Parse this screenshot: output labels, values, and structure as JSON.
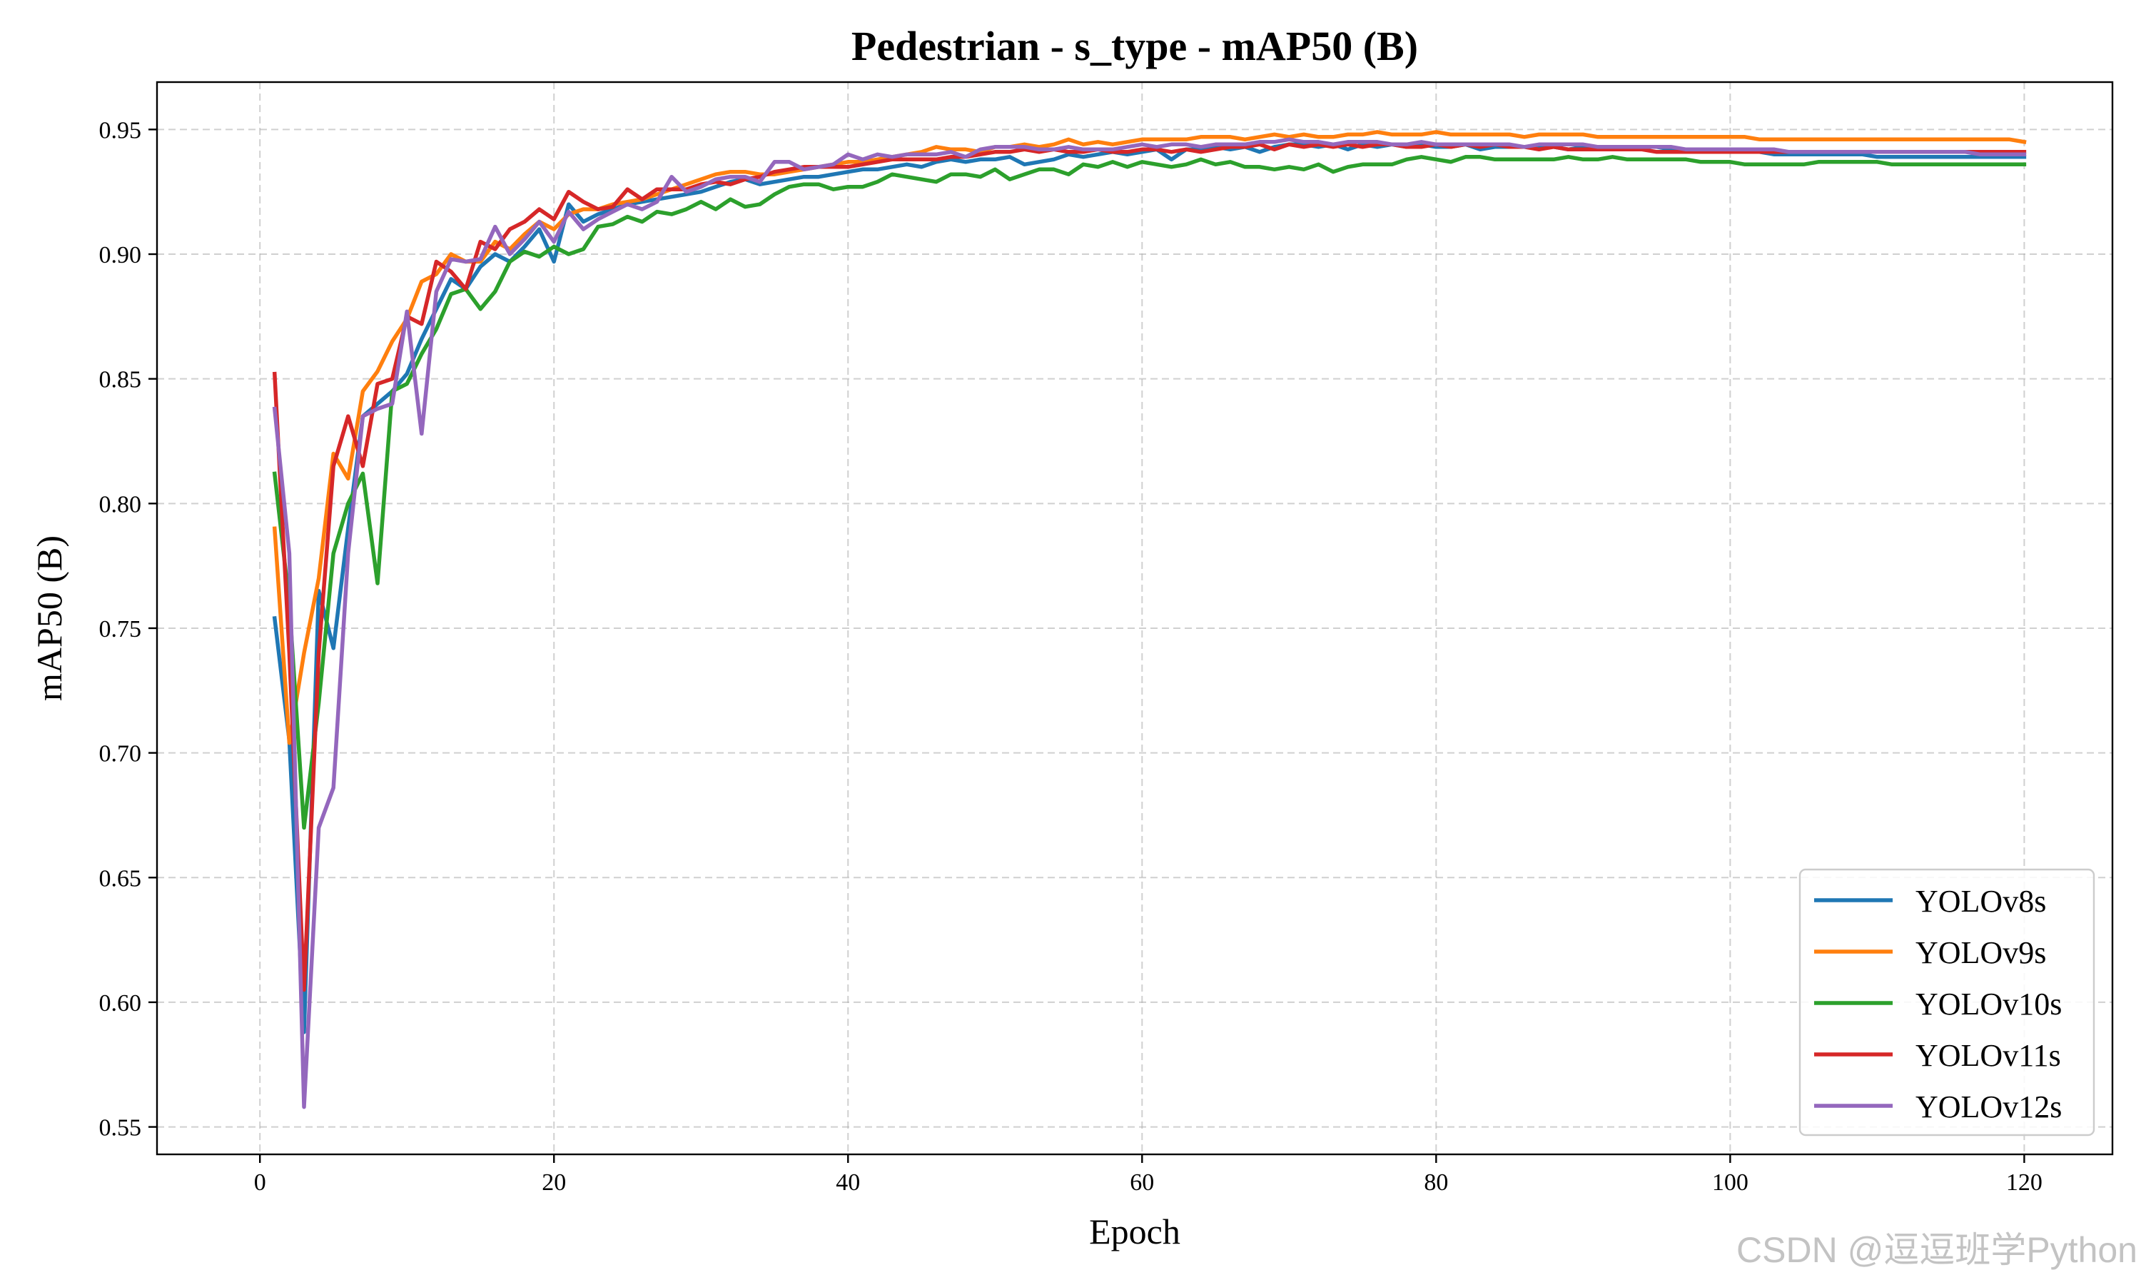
{
  "chart_data": {
    "type": "line",
    "title": "Pedestrian - s_type - mAP50 (B)",
    "xlabel": "Epoch",
    "ylabel": "mAP50 (B)",
    "xlim": [
      -7.0,
      126.0
    ],
    "ylim": [
      0.539,
      0.969
    ],
    "xticks": [
      0,
      20,
      40,
      60,
      80,
      100,
      120
    ],
    "yticks": [
      0.55,
      0.6,
      0.65,
      0.7,
      0.75,
      0.8,
      0.85,
      0.9,
      0.95
    ],
    "ytick_labels": [
      "0.55",
      "0.60",
      "0.65",
      "0.70",
      "0.75",
      "0.80",
      "0.85",
      "0.90",
      "0.95"
    ],
    "grid": true,
    "grid_style": "dashed",
    "legend_position": "lower-right",
    "x_start": 1,
    "series": [
      {
        "name": "YOLOv8s",
        "color": "#1f77b4",
        "values": [
          0.754,
          0.705,
          0.588,
          0.765,
          0.742,
          0.79,
          0.835,
          0.84,
          0.845,
          0.852,
          0.866,
          0.878,
          0.89,
          0.886,
          0.895,
          0.9,
          0.897,
          0.903,
          0.91,
          0.897,
          0.92,
          0.913,
          0.916,
          0.918,
          0.92,
          0.921,
          0.922,
          0.923,
          0.924,
          0.925,
          0.927,
          0.929,
          0.93,
          0.928,
          0.929,
          0.93,
          0.931,
          0.931,
          0.932,
          0.933,
          0.934,
          0.934,
          0.935,
          0.936,
          0.935,
          0.937,
          0.938,
          0.937,
          0.938,
          0.938,
          0.939,
          0.936,
          0.937,
          0.938,
          0.94,
          0.939,
          0.94,
          0.941,
          0.94,
          0.941,
          0.942,
          0.938,
          0.942,
          0.942,
          0.943,
          0.942,
          0.943,
          0.941,
          0.943,
          0.944,
          0.944,
          0.943,
          0.944,
          0.942,
          0.944,
          0.943,
          0.944,
          0.943,
          0.944,
          0.943,
          0.943,
          0.944,
          0.942,
          0.943,
          0.943,
          0.943,
          0.943,
          0.943,
          0.942,
          0.943,
          0.943,
          0.942,
          0.942,
          0.943,
          0.943,
          0.942,
          0.942,
          0.942,
          0.941,
          0.941,
          0.941,
          0.941,
          0.94,
          0.94,
          0.94,
          0.94,
          0.94,
          0.94,
          0.94,
          0.939,
          0.939,
          0.939,
          0.939,
          0.939,
          0.939,
          0.939,
          0.939,
          0.939,
          0.939,
          0.939
        ]
      },
      {
        "name": "YOLOv9s",
        "color": "#ff7f0e",
        "values": [
          0.79,
          0.704,
          0.74,
          0.77,
          0.82,
          0.81,
          0.845,
          0.853,
          0.865,
          0.874,
          0.889,
          0.892,
          0.9,
          0.897,
          0.897,
          0.905,
          0.902,
          0.908,
          0.913,
          0.91,
          0.916,
          0.918,
          0.918,
          0.92,
          0.921,
          0.922,
          0.924,
          0.926,
          0.928,
          0.93,
          0.932,
          0.933,
          0.933,
          0.932,
          0.932,
          0.933,
          0.934,
          0.935,
          0.936,
          0.937,
          0.937,
          0.938,
          0.939,
          0.94,
          0.941,
          0.943,
          0.942,
          0.942,
          0.941,
          0.943,
          0.943,
          0.944,
          0.943,
          0.944,
          0.946,
          0.944,
          0.945,
          0.944,
          0.945,
          0.946,
          0.946,
          0.946,
          0.946,
          0.947,
          0.947,
          0.947,
          0.946,
          0.947,
          0.948,
          0.947,
          0.948,
          0.947,
          0.947,
          0.948,
          0.948,
          0.949,
          0.948,
          0.948,
          0.948,
          0.949,
          0.948,
          0.948,
          0.948,
          0.948,
          0.948,
          0.947,
          0.948,
          0.948,
          0.948,
          0.948,
          0.947,
          0.947,
          0.947,
          0.947,
          0.947,
          0.947,
          0.947,
          0.947,
          0.947,
          0.947,
          0.947,
          0.946,
          0.946,
          0.946,
          0.946,
          0.946,
          0.946,
          0.946,
          0.946,
          0.946,
          0.946,
          0.946,
          0.946,
          0.946,
          0.946,
          0.946,
          0.946,
          0.946,
          0.946,
          0.945
        ]
      },
      {
        "name": "YOLOv10s",
        "color": "#2ca02c",
        "values": [
          0.812,
          0.76,
          0.67,
          0.72,
          0.78,
          0.8,
          0.812,
          0.768,
          0.845,
          0.848,
          0.86,
          0.87,
          0.884,
          0.886,
          0.878,
          0.885,
          0.897,
          0.901,
          0.899,
          0.903,
          0.9,
          0.902,
          0.911,
          0.912,
          0.915,
          0.913,
          0.917,
          0.916,
          0.918,
          0.921,
          0.918,
          0.922,
          0.919,
          0.92,
          0.924,
          0.927,
          0.928,
          0.928,
          0.926,
          0.927,
          0.927,
          0.929,
          0.932,
          0.931,
          0.93,
          0.929,
          0.932,
          0.932,
          0.931,
          0.934,
          0.93,
          0.932,
          0.934,
          0.934,
          0.932,
          0.936,
          0.935,
          0.937,
          0.935,
          0.937,
          0.936,
          0.935,
          0.936,
          0.938,
          0.936,
          0.937,
          0.935,
          0.935,
          0.934,
          0.935,
          0.934,
          0.936,
          0.933,
          0.935,
          0.936,
          0.936,
          0.936,
          0.938,
          0.939,
          0.938,
          0.937,
          0.939,
          0.939,
          0.938,
          0.938,
          0.938,
          0.938,
          0.938,
          0.939,
          0.938,
          0.938,
          0.939,
          0.938,
          0.938,
          0.938,
          0.938,
          0.938,
          0.937,
          0.937,
          0.937,
          0.936,
          0.936,
          0.936,
          0.936,
          0.936,
          0.937,
          0.937,
          0.937,
          0.937,
          0.937,
          0.936,
          0.936,
          0.936,
          0.936,
          0.936,
          0.936,
          0.936,
          0.936,
          0.936,
          0.936
        ]
      },
      {
        "name": "YOLOv11s",
        "color": "#d62728",
        "values": [
          0.852,
          0.74,
          0.605,
          0.74,
          0.815,
          0.835,
          0.815,
          0.848,
          0.85,
          0.875,
          0.872,
          0.897,
          0.893,
          0.886,
          0.905,
          0.902,
          0.91,
          0.913,
          0.918,
          0.914,
          0.925,
          0.921,
          0.918,
          0.919,
          0.926,
          0.922,
          0.926,
          0.926,
          0.926,
          0.928,
          0.929,
          0.928,
          0.93,
          0.931,
          0.933,
          0.934,
          0.935,
          0.935,
          0.935,
          0.935,
          0.936,
          0.937,
          0.938,
          0.938,
          0.938,
          0.938,
          0.939,
          0.939,
          0.94,
          0.941,
          0.941,
          0.942,
          0.941,
          0.942,
          0.941,
          0.941,
          0.942,
          0.941,
          0.941,
          0.942,
          0.942,
          0.941,
          0.942,
          0.941,
          0.942,
          0.943,
          0.943,
          0.944,
          0.942,
          0.944,
          0.943,
          0.944,
          0.943,
          0.944,
          0.943,
          0.944,
          0.944,
          0.943,
          0.943,
          0.944,
          0.943,
          0.944,
          0.943,
          0.944,
          0.943,
          0.943,
          0.942,
          0.943,
          0.942,
          0.942,
          0.942,
          0.942,
          0.942,
          0.942,
          0.941,
          0.941,
          0.941,
          0.941,
          0.941,
          0.941,
          0.941,
          0.941,
          0.941,
          0.941,
          0.941,
          0.941,
          0.941,
          0.941,
          0.941,
          0.941,
          0.941,
          0.941,
          0.941,
          0.941,
          0.941,
          0.941,
          0.941,
          0.941,
          0.941,
          0.941
        ]
      },
      {
        "name": "YOLOv12s",
        "color": "#9467bd",
        "values": [
          0.838,
          0.78,
          0.558,
          0.67,
          0.686,
          0.78,
          0.835,
          0.838,
          0.84,
          0.877,
          0.828,
          0.885,
          0.898,
          0.897,
          0.898,
          0.911,
          0.9,
          0.906,
          0.913,
          0.905,
          0.917,
          0.91,
          0.914,
          0.917,
          0.92,
          0.918,
          0.921,
          0.931,
          0.925,
          0.927,
          0.93,
          0.931,
          0.931,
          0.929,
          0.937,
          0.937,
          0.934,
          0.935,
          0.936,
          0.94,
          0.938,
          0.94,
          0.939,
          0.94,
          0.94,
          0.94,
          0.941,
          0.939,
          0.942,
          0.943,
          0.943,
          0.943,
          0.942,
          0.942,
          0.943,
          0.942,
          0.942,
          0.942,
          0.943,
          0.944,
          0.943,
          0.944,
          0.944,
          0.943,
          0.944,
          0.944,
          0.944,
          0.945,
          0.945,
          0.946,
          0.945,
          0.945,
          0.944,
          0.945,
          0.945,
          0.945,
          0.944,
          0.944,
          0.945,
          0.944,
          0.944,
          0.944,
          0.944,
          0.944,
          0.944,
          0.943,
          0.944,
          0.944,
          0.944,
          0.944,
          0.943,
          0.943,
          0.943,
          0.943,
          0.943,
          0.943,
          0.942,
          0.942,
          0.942,
          0.942,
          0.942,
          0.942,
          0.942,
          0.941,
          0.941,
          0.941,
          0.941,
          0.941,
          0.941,
          0.941,
          0.941,
          0.941,
          0.941,
          0.941,
          0.941,
          0.941,
          0.94,
          0.94,
          0.94,
          0.94
        ]
      }
    ]
  },
  "watermark": "CSDN @逗逗班学Python"
}
